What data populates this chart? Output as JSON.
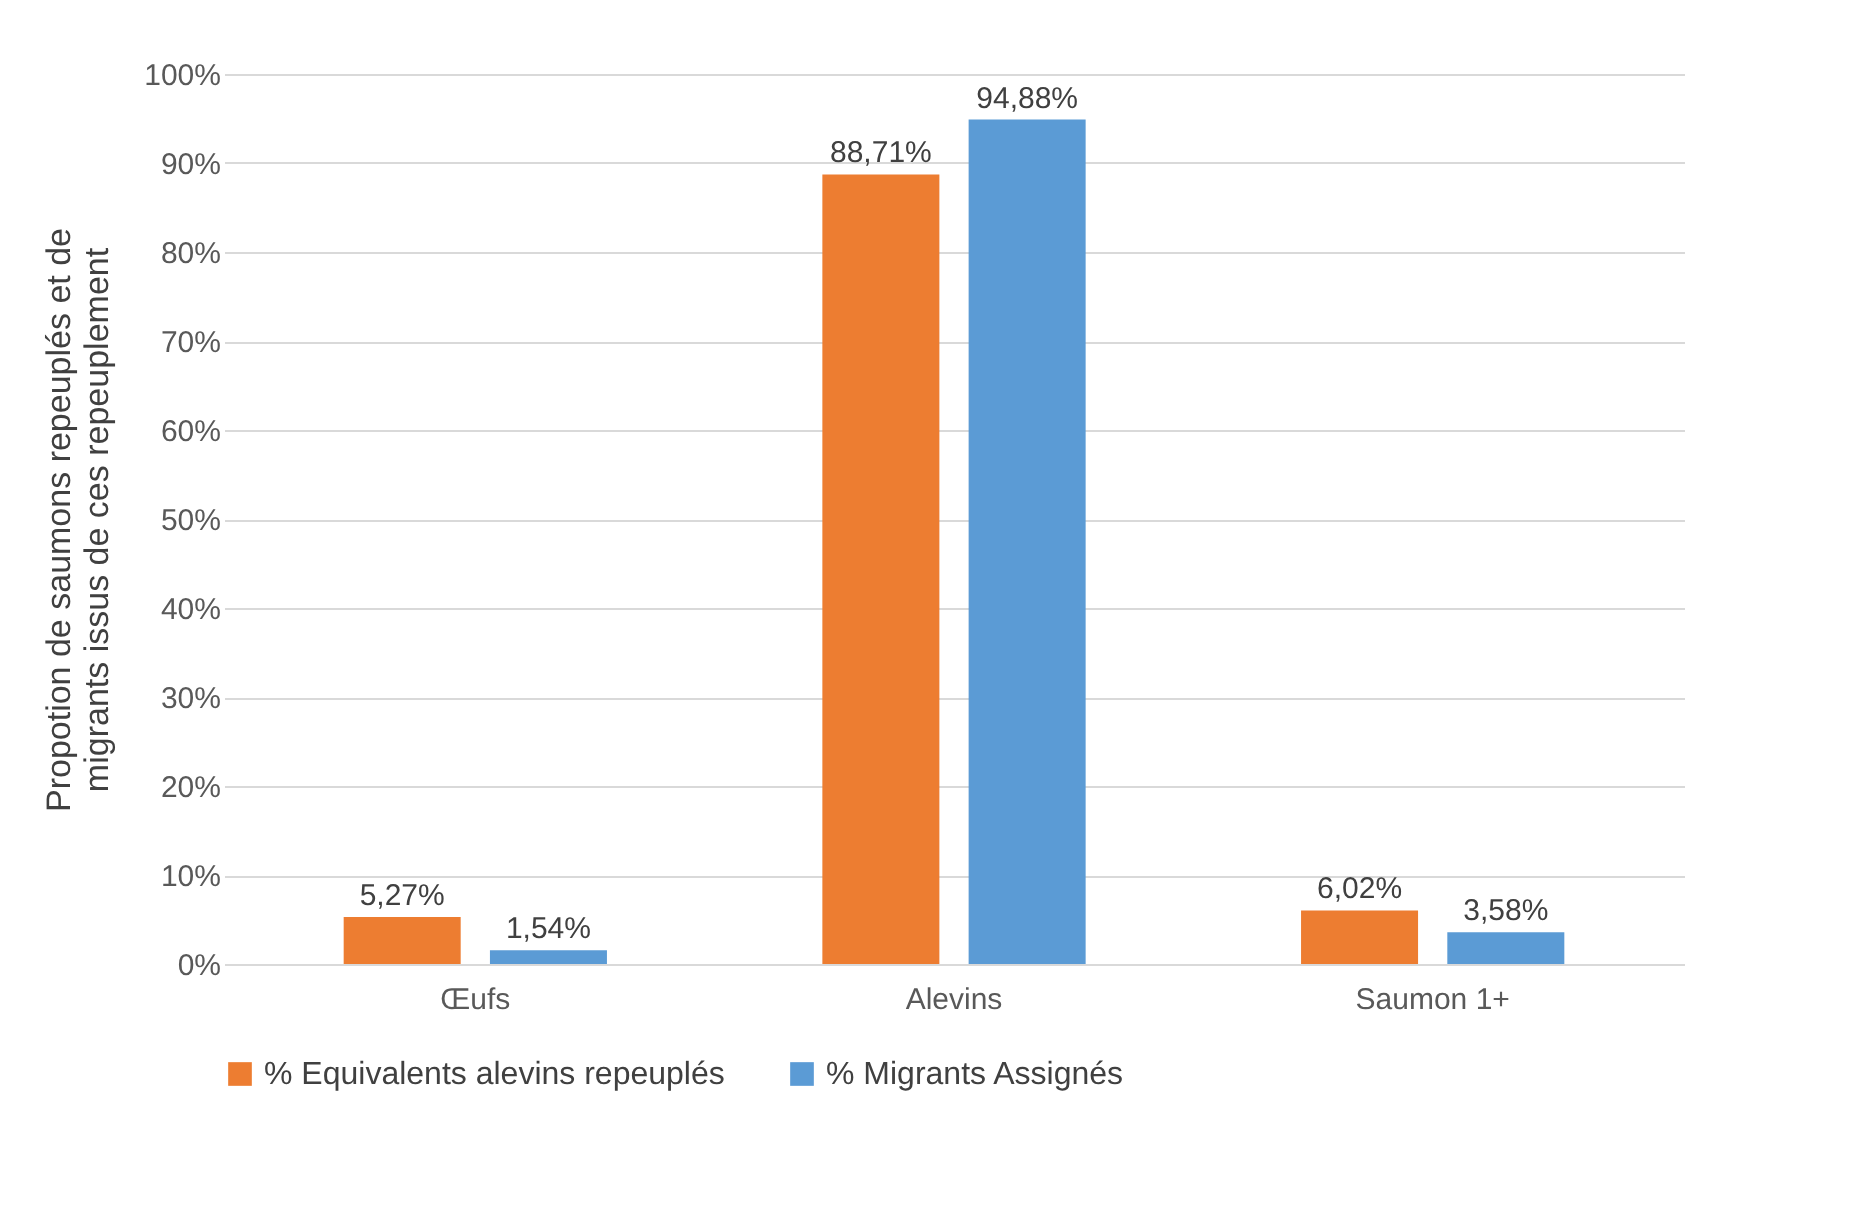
{
  "chart_data": {
    "type": "bar",
    "ylabel": "Propotion de saumons repeuplés et de migrants issus de ces repeuplement",
    "categories": [
      "Œufs",
      "Alevins",
      "Saumon 1+"
    ],
    "series": [
      {
        "name": "% Equivalents alevins repeuplés",
        "color": "#ed7d31",
        "values": [
          5.27,
          88.71,
          6.02
        ],
        "value_labels": [
          "5,27%",
          "88,71%",
          "6,02%"
        ]
      },
      {
        "name": "% Migrants Assignés",
        "color": "#5b9bd5",
        "values": [
          1.54,
          94.88,
          3.58
        ],
        "value_labels": [
          "1,54%",
          "94,88%",
          "3,58%"
        ]
      }
    ],
    "ylim": [
      0,
      100
    ],
    "yticks": [
      {
        "value": 0,
        "label": "0%"
      },
      {
        "value": 10,
        "label": "10%"
      },
      {
        "value": 20,
        "label": "20%"
      },
      {
        "value": 30,
        "label": "30%"
      },
      {
        "value": 40,
        "label": "40%"
      },
      {
        "value": 50,
        "label": "50%"
      },
      {
        "value": 60,
        "label": "60%"
      },
      {
        "value": 70,
        "label": "70%"
      },
      {
        "value": 80,
        "label": "80%"
      },
      {
        "value": 90,
        "label": "90%"
      },
      {
        "value": 100,
        "label": "100%"
      }
    ],
    "grid": "y",
    "legend": "bottom"
  }
}
